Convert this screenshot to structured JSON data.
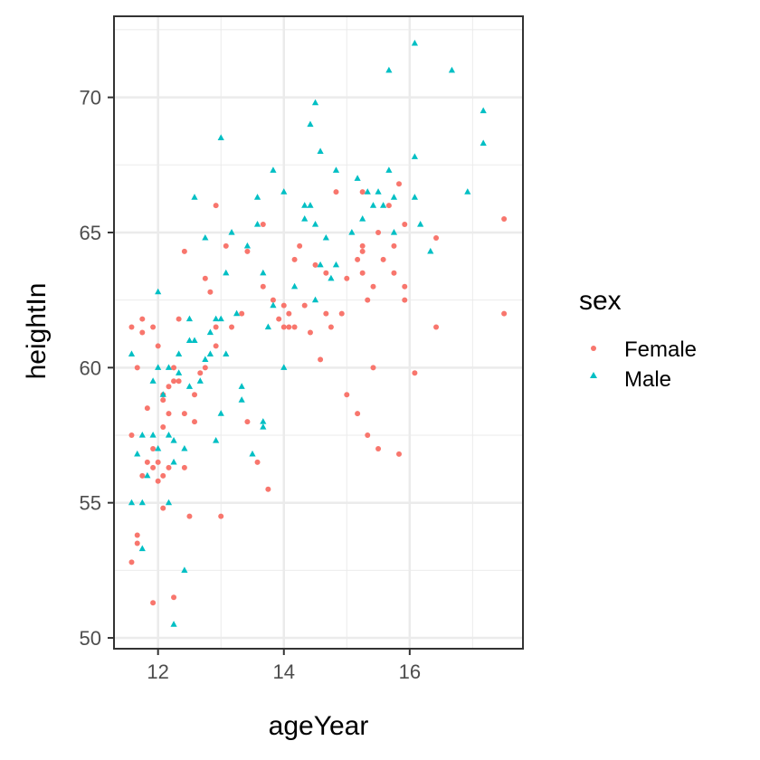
{
  "chart_data": {
    "type": "scatter",
    "xlabel": "ageYear",
    "ylabel": "heightIn",
    "xlim": [
      11.3,
      17.8
    ],
    "ylim": [
      49.6,
      73.0
    ],
    "x_ticks": [
      12,
      14,
      16
    ],
    "x_tick_labels": [
      "12",
      "14",
      "16"
    ],
    "x_minor_ticks": [
      13,
      15,
      17
    ],
    "y_ticks": [
      50,
      55,
      60,
      65,
      70
    ],
    "y_tick_labels": [
      "50",
      "55",
      "60",
      "65",
      "70"
    ],
    "y_minor_ticks": [
      52.5,
      57.5,
      62.5,
      67.5,
      72.5
    ],
    "grid": true,
    "legend": {
      "title": "sex",
      "placement": "right",
      "entries": [
        {
          "label": "Female",
          "shape": "circle",
          "color": "#F8766D"
        },
        {
          "label": "Male",
          "shape": "triangle",
          "color": "#00BFC4"
        }
      ]
    },
    "series": [
      {
        "name": "Female",
        "color": "#F8766D",
        "shape": "circle",
        "points": [
          [
            11.58,
            61.5
          ],
          [
            11.58,
            57.5
          ],
          [
            11.58,
            52.8
          ],
          [
            11.67,
            53.8
          ],
          [
            11.67,
            53.5
          ],
          [
            11.67,
            60.0
          ],
          [
            11.75,
            61.8
          ],
          [
            11.75,
            61.3
          ],
          [
            11.75,
            56.0
          ],
          [
            11.83,
            58.5
          ],
          [
            11.83,
            56.5
          ],
          [
            11.92,
            61.5
          ],
          [
            11.92,
            51.3
          ],
          [
            11.92,
            57.0
          ],
          [
            11.92,
            56.3
          ],
          [
            12.0,
            60.8
          ],
          [
            12.0,
            55.8
          ],
          [
            12.0,
            56.5
          ],
          [
            12.08,
            59.0
          ],
          [
            12.08,
            58.8
          ],
          [
            12.08,
            57.8
          ],
          [
            12.08,
            56.0
          ],
          [
            12.08,
            54.8
          ],
          [
            12.17,
            59.3
          ],
          [
            12.17,
            58.3
          ],
          [
            12.17,
            56.3
          ],
          [
            12.25,
            60.0
          ],
          [
            12.25,
            59.5
          ],
          [
            12.25,
            51.5
          ],
          [
            12.33,
            61.8
          ],
          [
            12.33,
            59.5
          ],
          [
            12.42,
            64.3
          ],
          [
            12.42,
            58.3
          ],
          [
            12.42,
            56.3
          ],
          [
            12.5,
            54.5
          ],
          [
            12.58,
            59.0
          ],
          [
            12.75,
            63.3
          ],
          [
            12.75,
            60.0
          ],
          [
            12.83,
            62.8
          ],
          [
            12.92,
            66.0
          ],
          [
            12.92,
            61.5
          ],
          [
            13.0,
            54.5
          ],
          [
            13.08,
            64.5
          ],
          [
            13.17,
            61.5
          ],
          [
            13.33,
            62.0
          ],
          [
            13.42,
            58.0
          ],
          [
            13.58,
            56.5
          ],
          [
            13.67,
            65.3
          ],
          [
            13.67,
            63.0
          ],
          [
            13.75,
            55.5
          ],
          [
            13.83,
            62.5
          ],
          [
            13.92,
            61.8
          ],
          [
            14.0,
            62.3
          ],
          [
            14.0,
            61.5
          ],
          [
            14.08,
            62.0
          ],
          [
            14.08,
            61.5
          ],
          [
            14.17,
            64.0
          ],
          [
            14.17,
            61.5
          ],
          [
            14.25,
            64.5
          ],
          [
            14.33,
            62.3
          ],
          [
            14.42,
            61.3
          ],
          [
            14.58,
            60.3
          ],
          [
            14.67,
            62.0
          ],
          [
            14.75,
            61.5
          ],
          [
            14.83,
            66.5
          ],
          [
            14.92,
            62.0
          ],
          [
            15.0,
            59.0
          ],
          [
            15.0,
            63.3
          ],
          [
            15.17,
            58.3
          ],
          [
            15.17,
            64.0
          ],
          [
            15.25,
            64.5
          ],
          [
            15.25,
            64.3
          ],
          [
            15.25,
            63.5
          ],
          [
            15.33,
            62.5
          ],
          [
            15.33,
            57.5
          ],
          [
            15.42,
            60.0
          ],
          [
            15.42,
            63.0
          ],
          [
            15.5,
            65.0
          ],
          [
            15.5,
            57.0
          ],
          [
            15.58,
            64.0
          ],
          [
            15.67,
            66.0
          ],
          [
            15.75,
            63.5
          ],
          [
            15.75,
            64.5
          ],
          [
            15.83,
            66.8
          ],
          [
            15.83,
            56.8
          ],
          [
            15.92,
            63.0
          ],
          [
            15.92,
            62.5
          ],
          [
            15.92,
            65.3
          ],
          [
            16.08,
            59.8
          ],
          [
            16.42,
            64.8
          ],
          [
            16.42,
            61.5
          ],
          [
            17.5,
            65.5
          ],
          [
            17.5,
            62.0
          ],
          [
            15.25,
            66.5
          ],
          [
            14.67,
            63.5
          ],
          [
            13.42,
            64.3
          ],
          [
            12.92,
            60.8
          ],
          [
            12.67,
            59.8
          ],
          [
            14.5,
            63.8
          ],
          [
            12.58,
            58.0
          ]
        ]
      },
      {
        "name": "Male",
        "color": "#00BFC4",
        "shape": "triangle",
        "points": [
          [
            11.58,
            60.5
          ],
          [
            11.58,
            55.0
          ],
          [
            11.67,
            56.8
          ],
          [
            11.75,
            57.5
          ],
          [
            11.75,
            55.0
          ],
          [
            11.75,
            53.3
          ],
          [
            11.83,
            56.0
          ],
          [
            11.92,
            57.5
          ],
          [
            11.92,
            59.5
          ],
          [
            12.0,
            62.8
          ],
          [
            12.0,
            60.0
          ],
          [
            12.0,
            57.0
          ],
          [
            12.08,
            59.0
          ],
          [
            12.17,
            60.0
          ],
          [
            12.17,
            57.5
          ],
          [
            12.17,
            55.0
          ],
          [
            12.25,
            57.3
          ],
          [
            12.25,
            56.5
          ],
          [
            12.25,
            50.5
          ],
          [
            12.33,
            60.5
          ],
          [
            12.42,
            52.5
          ],
          [
            12.42,
            57.0
          ],
          [
            12.5,
            61.8
          ],
          [
            12.5,
            61.0
          ],
          [
            12.5,
            59.3
          ],
          [
            12.58,
            66.3
          ],
          [
            12.58,
            61.0
          ],
          [
            12.67,
            59.5
          ],
          [
            12.75,
            64.8
          ],
          [
            12.75,
            60.3
          ],
          [
            12.83,
            60.5
          ],
          [
            12.92,
            57.3
          ],
          [
            12.92,
            61.8
          ],
          [
            13.0,
            68.5
          ],
          [
            13.0,
            61.8
          ],
          [
            13.0,
            58.3
          ],
          [
            13.08,
            60.5
          ],
          [
            13.17,
            65.0
          ],
          [
            13.25,
            62.0
          ],
          [
            13.33,
            59.3
          ],
          [
            13.33,
            58.8
          ],
          [
            13.42,
            64.5
          ],
          [
            13.5,
            56.8
          ],
          [
            13.58,
            66.3
          ],
          [
            13.58,
            65.3
          ],
          [
            13.67,
            63.5
          ],
          [
            13.67,
            58.0
          ],
          [
            13.67,
            57.8
          ],
          [
            13.75,
            61.5
          ],
          [
            13.83,
            67.3
          ],
          [
            13.83,
            62.3
          ],
          [
            14.0,
            66.5
          ],
          [
            14.0,
            60.0
          ],
          [
            14.17,
            63.0
          ],
          [
            14.33,
            65.5
          ],
          [
            14.42,
            69.0
          ],
          [
            14.42,
            66.0
          ],
          [
            14.5,
            69.8
          ],
          [
            14.5,
            65.3
          ],
          [
            14.5,
            62.5
          ],
          [
            14.58,
            68.0
          ],
          [
            14.58,
            63.8
          ],
          [
            14.67,
            64.8
          ],
          [
            14.75,
            63.3
          ],
          [
            14.83,
            63.8
          ],
          [
            14.83,
            67.3
          ],
          [
            15.08,
            65.0
          ],
          [
            15.17,
            67.0
          ],
          [
            15.25,
            65.5
          ],
          [
            15.33,
            66.5
          ],
          [
            15.42,
            66.0
          ],
          [
            15.5,
            66.5
          ],
          [
            15.58,
            66.0
          ],
          [
            15.67,
            71.0
          ],
          [
            15.67,
            67.3
          ],
          [
            15.75,
            66.3
          ],
          [
            15.75,
            65.0
          ],
          [
            16.08,
            72.0
          ],
          [
            16.08,
            67.8
          ],
          [
            16.08,
            66.3
          ],
          [
            16.17,
            65.3
          ],
          [
            16.33,
            64.3
          ],
          [
            16.67,
            71.0
          ],
          [
            16.92,
            66.5
          ],
          [
            17.17,
            69.5
          ],
          [
            17.17,
            68.3
          ],
          [
            14.33,
            66.0
          ],
          [
            13.08,
            63.5
          ],
          [
            12.83,
            61.3
          ],
          [
            12.33,
            59.8
          ]
        ]
      }
    ]
  }
}
